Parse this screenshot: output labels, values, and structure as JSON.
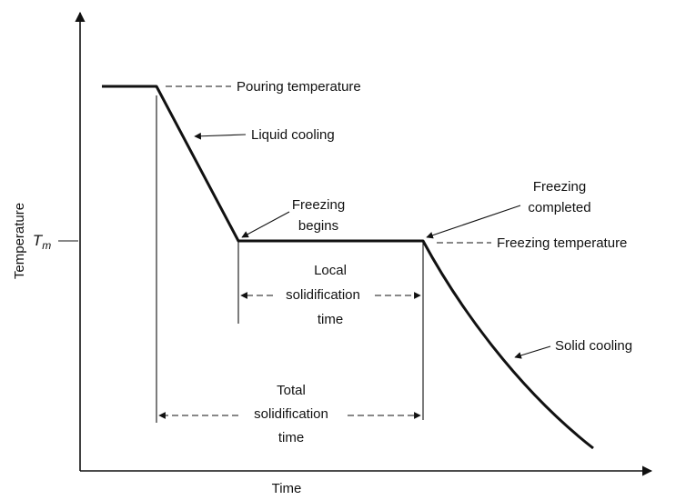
{
  "axes": {
    "y_label": "Temperature",
    "x_label": "Time",
    "tm": {
      "base": "T",
      "sub": "m"
    }
  },
  "annotations": {
    "pouring": "Pouring temperature",
    "liquid_cooling": "Liquid cooling",
    "freezing_begins": [
      "Freezing",
      "begins"
    ],
    "freezing_completed": [
      "Freezing",
      "completed"
    ],
    "freezing_temperature": "Freezing temperature",
    "local": [
      "Local",
      "solidification",
      "time"
    ],
    "total": [
      "Total",
      "solidification",
      "time"
    ],
    "solid_cooling": "Solid cooling"
  }
}
